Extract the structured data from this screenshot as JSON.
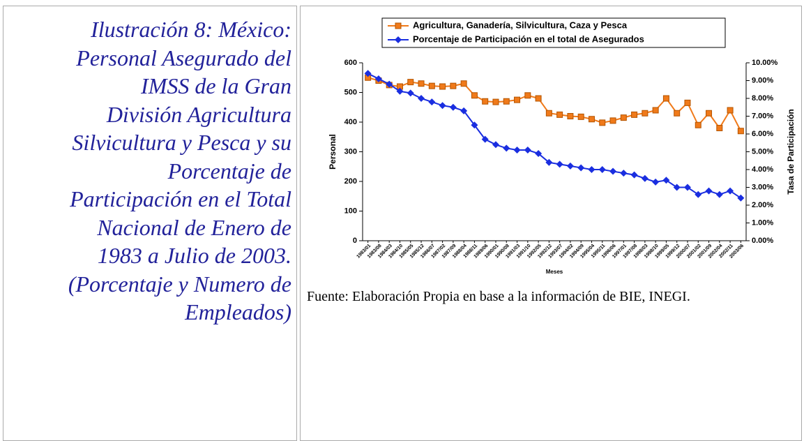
{
  "caption": {
    "lines": [
      "Ilustración 8: México:",
      "Personal Asegurado del",
      "IMSS de la Gran",
      "División Agricultura",
      "Silvicultura y Pesca y su",
      "Porcentaje de",
      "Participación en el Total",
      "Nacional de Enero de",
      "1983 a Julio de 2003.",
      "(Porcentaje y Numero de",
      "Empleados)"
    ]
  },
  "chart_data": {
    "type": "line",
    "x_label": "Meses",
    "y_label": "Personal",
    "y2_label": "Tasa de Participación",
    "categories": [
      "1983/01",
      "1983/08",
      "1984/03",
      "1984/10",
      "1985/05",
      "1985/12",
      "1986/07",
      "1987/02",
      "1987/09",
      "1988/04",
      "1988/11",
      "1989/06",
      "1990/01",
      "1990/08",
      "1991/03",
      "1991/10",
      "1992/05",
      "1992/12",
      "1993/07",
      "1994/02",
      "1994/09",
      "1995/04",
      "1995/11",
      "1996/06",
      "1997/01",
      "1997/08",
      "1998/03",
      "1998/10",
      "1999/05",
      "1999/12",
      "2000/07",
      "2001/02",
      "2001/09",
      "2002/04",
      "2002/11",
      "2003/06"
    ],
    "series": [
      {
        "name": "Agricultura, Ganadería, Silvicultura, Caza y Pesca",
        "color": "#f07a1a",
        "marker": "square",
        "values": [
          550,
          540,
          525,
          520,
          535,
          530,
          522,
          520,
          522,
          530,
          490,
          470,
          468,
          470,
          475,
          490,
          480,
          430,
          425,
          420,
          418,
          410,
          398,
          405,
          415,
          425,
          430,
          440,
          480,
          430,
          465,
          390,
          430,
          380,
          440,
          370
        ]
      },
      {
        "name": "Porcentaje de Participación en el total de Asegurados",
        "color": "#1a2ee0",
        "marker": "diamond",
        "axis": "y2",
        "values": [
          9.4,
          9.1,
          8.8,
          8.4,
          8.3,
          8.0,
          7.8,
          7.6,
          7.5,
          7.3,
          6.5,
          5.7,
          5.4,
          5.2,
          5.1,
          5.1,
          4.9,
          4.4,
          4.3,
          4.2,
          4.1,
          4.0,
          4.0,
          3.9,
          3.8,
          3.7,
          3.5,
          3.3,
          3.4,
          3.0,
          3.0,
          2.6,
          2.8,
          2.6,
          2.8,
          2.4
        ]
      }
    ],
    "ylim": [
      0,
      600
    ],
    "yticks": [
      0,
      100,
      200,
      300,
      400,
      500,
      600
    ],
    "y2lim": [
      0,
      10
    ],
    "y2ticks": [
      {
        "value": 0,
        "label": "0.00%"
      },
      {
        "value": 1,
        "label": "1.00%"
      },
      {
        "value": 2,
        "label": "2.00%"
      },
      {
        "value": 3,
        "label": "3.00%"
      },
      {
        "value": 4,
        "label": "4.00%"
      },
      {
        "value": 5,
        "label": "5.00%"
      },
      {
        "value": 6,
        "label": "6.00%"
      },
      {
        "value": 7,
        "label": "7.00%"
      },
      {
        "value": 8,
        "label": "8.00%"
      },
      {
        "value": 9,
        "label": "9.00%"
      },
      {
        "value": 10,
        "label": "10.00%"
      }
    ],
    "legend": "top"
  },
  "source": "Fuente: Elaboración Propia en base a la información de BIE, INEGI."
}
